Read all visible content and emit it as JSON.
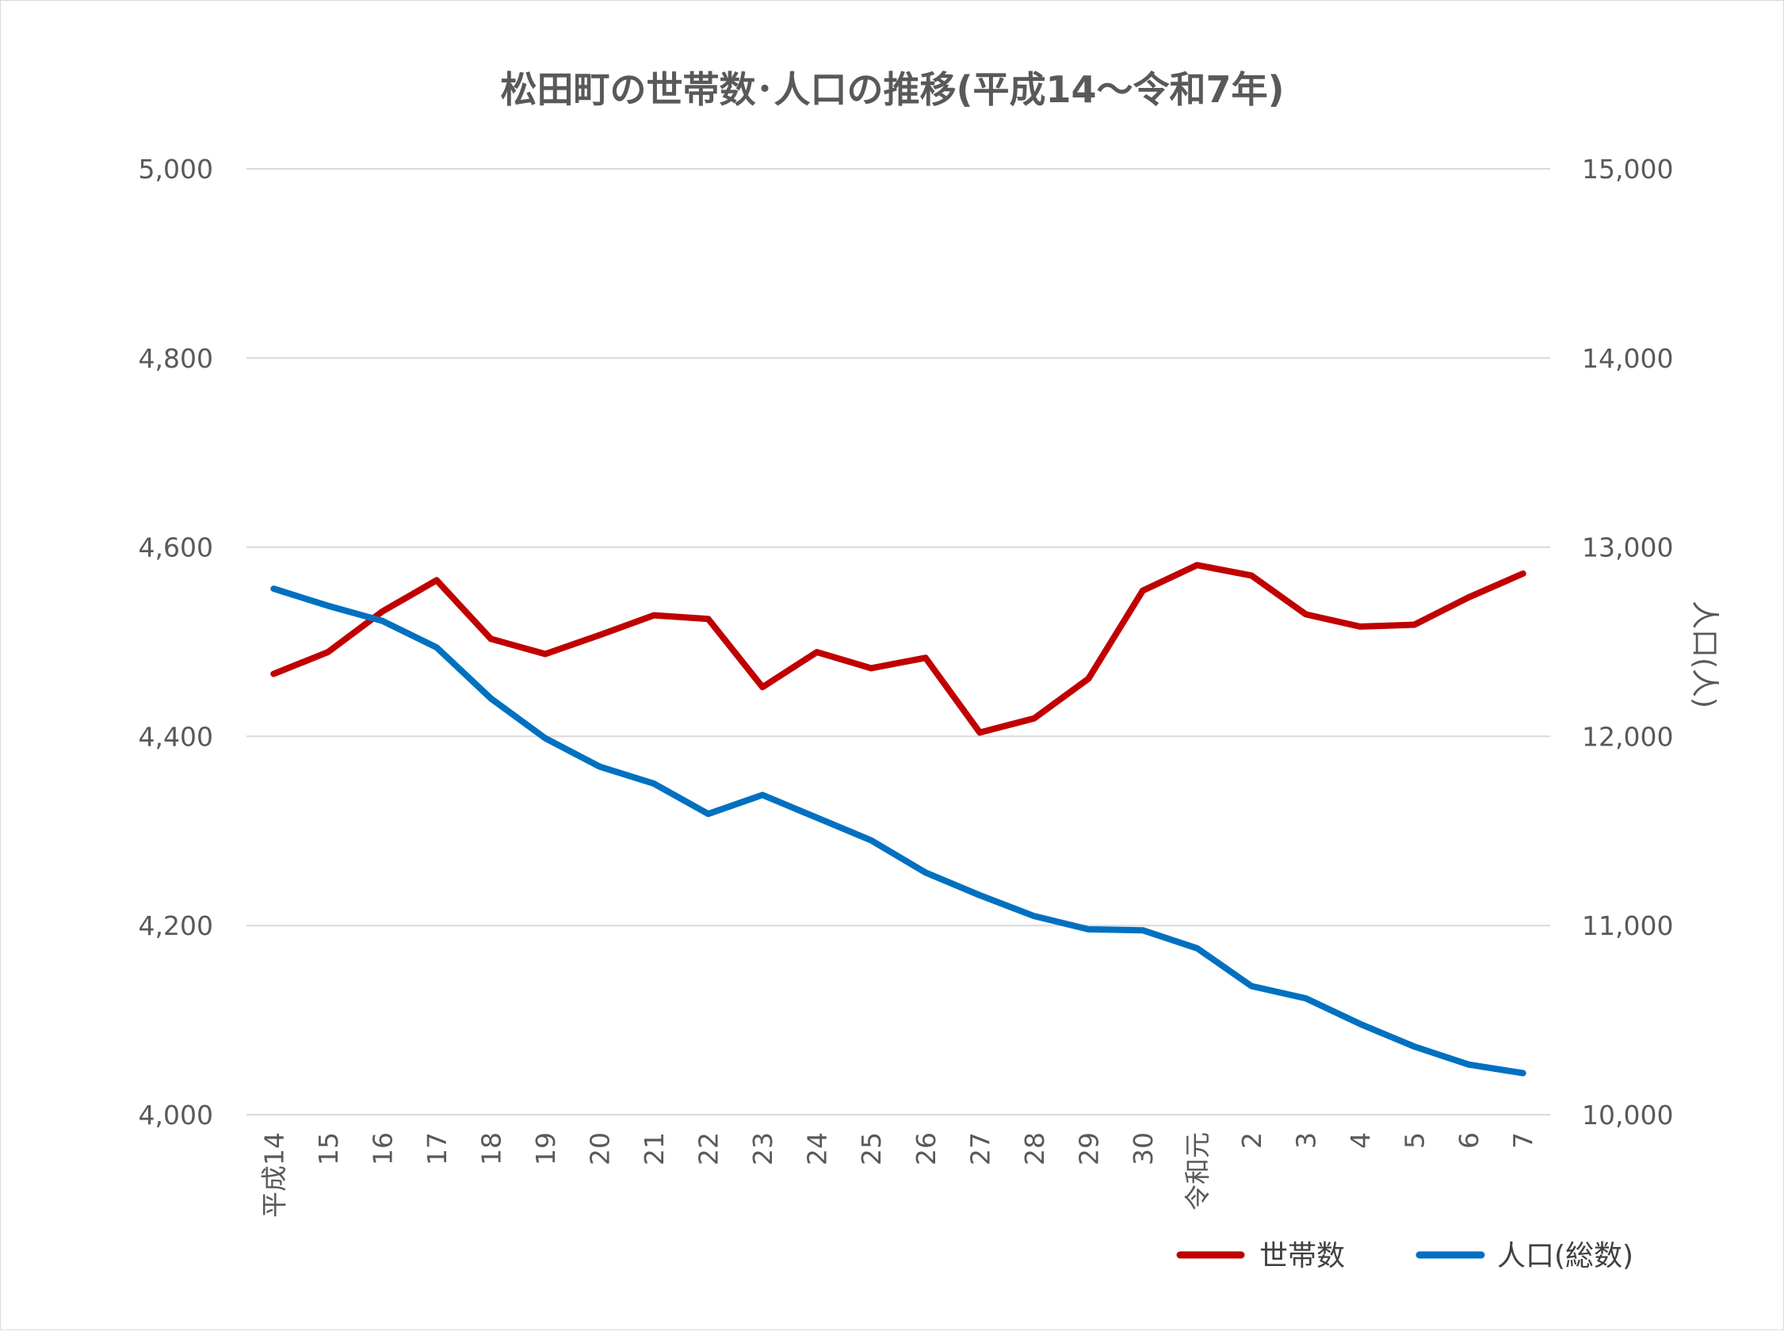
{
  "chart_data": {
    "type": "line",
    "title": "松田町の世帯数･人口の推移(平成14～令和7年)",
    "categories": [
      "平成14",
      "15",
      "16",
      "17",
      "18",
      "19",
      "20",
      "21",
      "22",
      "23",
      "24",
      "25",
      "26",
      "27",
      "28",
      "29",
      "30",
      "令和元",
      "2",
      "3",
      "4",
      "5",
      "6",
      "7"
    ],
    "y_left": {
      "label": "",
      "ylim": [
        4000,
        5000
      ],
      "ticks": [
        "4,000",
        "4,200",
        "4,400",
        "4,600",
        "4,800",
        "5,000"
      ],
      "tick_values": [
        4000,
        4200,
        4400,
        4600,
        4800,
        5000
      ]
    },
    "y_right": {
      "label": "人口(人)",
      "ylim": [
        10000,
        15000
      ],
      "ticks": [
        "10,000",
        "11,000",
        "12,000",
        "13,000",
        "14,000",
        "15,000"
      ],
      "tick_values": [
        10000,
        11000,
        12000,
        13000,
        14000,
        15000
      ]
    },
    "grid": true,
    "legend_position": "bottom-right",
    "series": [
      {
        "name": "世帯数",
        "axis": "left",
        "color": "#c00000",
        "values": [
          4466,
          4489,
          4532,
          4565,
          4503,
          4487,
          4507,
          4528,
          4524,
          4452,
          4489,
          4472,
          4483,
          4404,
          4419,
          4461,
          4554,
          4581,
          4570,
          4529,
          4516,
          4518,
          4547,
          4572
        ]
      },
      {
        "name": "人口(総数)",
        "axis": "right",
        "color": "#0070c0",
        "values": [
          12780,
          12690,
          12610,
          12470,
          12200,
          11990,
          11840,
          11750,
          11590,
          11690,
          11570,
          11450,
          11280,
          11160,
          11050,
          10980,
          10975,
          10880,
          10680,
          10615,
          10480,
          10360,
          10265,
          10220
        ]
      }
    ]
  }
}
